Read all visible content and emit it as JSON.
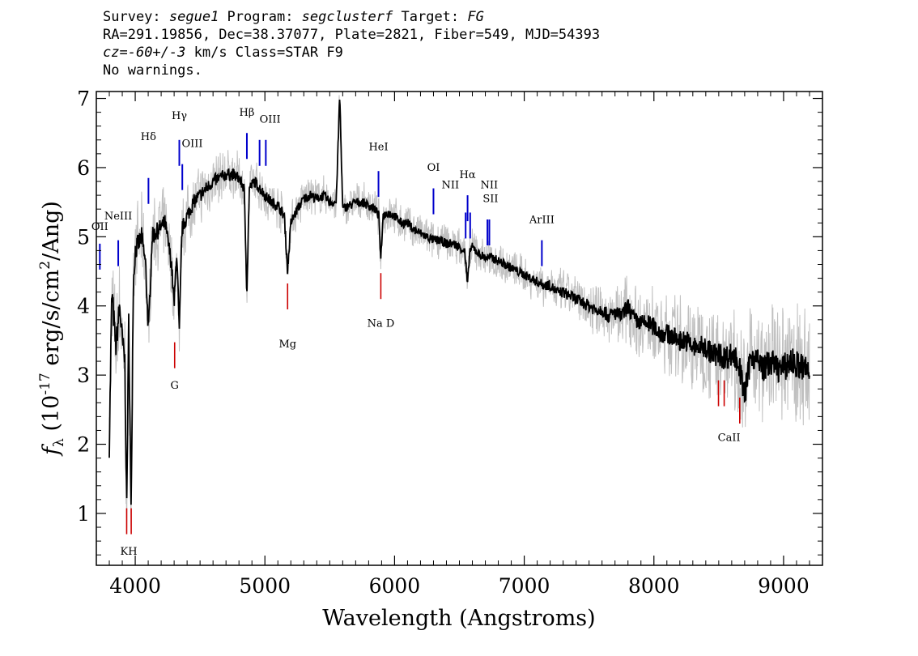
{
  "header": {
    "survey_label": "Survey: ",
    "survey": "segue1",
    "program_label": " Program: ",
    "program": "segclusterf",
    "target_label": " Target: ",
    "target": "FG",
    "line2": "RA=291.19856, Dec=38.37077, Plate=2821, Fiber=549, MJD=54393",
    "cz_label": "cz",
    "cz_value": "=-60+/-3",
    "cz_rest": " km/s Class=STAR F9",
    "line4": "No warnings."
  },
  "chart_data": {
    "type": "line",
    "xlabel": "Wavelength (Angstroms)",
    "ylabel_prefix": "f",
    "ylabel_sub": "λ",
    "ylabel_main": " (10",
    "ylabel_exp": "-17",
    "ylabel_mid": " erg/s/cm",
    "ylabel_exp2": "2",
    "ylabel_end": "/Ang)",
    "xlim": [
      3700,
      9300
    ],
    "ylim": [
      0.25,
      7.1
    ],
    "x_ticks": [
      4000,
      5000,
      6000,
      7000,
      8000,
      9000
    ],
    "y_ticks": [
      1,
      2,
      3,
      4,
      5,
      6,
      7
    ],
    "series": [
      {
        "role": "spectrum",
        "color": "#000000",
        "x": [
          3800,
          3820,
          3850,
          3880,
          3900,
          3920,
          3934,
          3950,
          3968,
          3985,
          4000,
          4050,
          4080,
          4102,
          4130,
          4180,
          4230,
          4280,
          4300,
          4320,
          4340,
          4360,
          4400,
          4450,
          4500,
          4550,
          4600,
          4650,
          4700,
          4750,
          4800,
          4840,
          4861,
          4880,
          4920,
          4960,
          5000,
          5050,
          5100,
          5150,
          5175,
          5200,
          5250,
          5300,
          5350,
          5400,
          5450,
          5500,
          5550,
          5577,
          5600,
          5650,
          5700,
          5750,
          5800,
          5850,
          5880,
          5893,
          5910,
          5950,
          6000,
          6050,
          6100,
          6150,
          6200,
          6250,
          6300,
          6350,
          6400,
          6450,
          6500,
          6540,
          6563,
          6580,
          6600,
          6650,
          6700,
          6750,
          6800,
          6850,
          6900,
          6950,
          7000,
          7050,
          7100,
          7150,
          7200,
          7250,
          7300,
          7350,
          7400,
          7450,
          7500,
          7550,
          7600,
          7650,
          7700,
          7750,
          7800,
          7850,
          7900,
          7950,
          8000,
          8050,
          8100,
          8150,
          8200,
          8250,
          8300,
          8350,
          8400,
          8450,
          8500,
          8550,
          8600,
          8650,
          8700,
          8750,
          8800,
          8850,
          8900,
          8950,
          9000,
          9050,
          9100,
          9150,
          9200
        ],
        "y": [
          2.0,
          4.2,
          3.4,
          4.0,
          3.5,
          3.2,
          1.0,
          3.8,
          1.0,
          4.3,
          4.8,
          5.0,
          4.6,
          3.6,
          5.0,
          5.1,
          5.2,
          4.6,
          4.0,
          4.8,
          3.6,
          5.1,
          5.3,
          5.5,
          5.6,
          5.7,
          5.8,
          5.85,
          5.9,
          5.9,
          5.85,
          5.7,
          4.2,
          5.7,
          5.8,
          5.7,
          5.6,
          5.5,
          5.45,
          5.3,
          4.5,
          5.2,
          5.4,
          5.55,
          5.6,
          5.55,
          5.6,
          5.5,
          5.5,
          7.05,
          5.4,
          5.45,
          5.5,
          5.5,
          5.45,
          5.4,
          5.3,
          4.6,
          5.3,
          5.35,
          5.3,
          5.2,
          5.2,
          5.1,
          5.05,
          5.0,
          4.95,
          4.95,
          4.9,
          4.9,
          4.85,
          4.8,
          4.3,
          4.8,
          4.85,
          4.75,
          4.7,
          4.7,
          4.65,
          4.6,
          4.55,
          4.5,
          4.45,
          4.4,
          4.35,
          4.3,
          4.3,
          4.2,
          4.2,
          4.15,
          4.1,
          4.05,
          4.0,
          3.95,
          3.95,
          3.85,
          3.9,
          3.85,
          4.0,
          3.8,
          3.75,
          3.75,
          3.7,
          3.6,
          3.6,
          3.55,
          3.5,
          3.5,
          3.4,
          3.4,
          3.4,
          3.3,
          3.3,
          3.25,
          3.3,
          3.2,
          2.7,
          3.3,
          3.2,
          3.1,
          3.2,
          3.1,
          3.1,
          3.2,
          3.15,
          3.1,
          3.05
        ]
      },
      {
        "role": "error-envelope",
        "color": "#c0c0c0",
        "x": [
          3750,
          3900,
          4100,
          4400,
          4700,
          5000,
          5500,
          6000,
          6500,
          7000,
          7500,
          8000,
          8500,
          9000,
          9200
        ],
        "y": [
          0.45,
          0.4,
          0.3,
          0.25,
          0.2,
          0.18,
          0.15,
          0.15,
          0.15,
          0.15,
          0.2,
          0.3,
          0.4,
          0.45,
          0.5
        ]
      }
    ],
    "emission_lines": [
      {
        "label": "OII",
        "x": 3727,
        "y": 4.9,
        "color": "#0000cc"
      },
      {
        "label": "NeIII",
        "x": 3869,
        "y": 4.95,
        "color": "#0000cc"
      },
      {
        "label": "Hδ",
        "x": 4102,
        "y": 5.85,
        "color": "#0000cc"
      },
      {
        "label": "Hγ",
        "x": 4340,
        "y": 6.4,
        "color": "#0000cc"
      },
      {
        "label": "OIII",
        "x": 4363,
        "y": 6.05,
        "color": "#0000cc"
      },
      {
        "label": "Hβ",
        "x": 4861,
        "y": 6.5,
        "color": "#0000cc"
      },
      {
        "label": "OIII",
        "x": 4959,
        "y": 6.4,
        "color": "#0000cc"
      },
      {
        "label": "OIII",
        "x": 5007,
        "y": 6.4,
        "color": "#0000cc"
      },
      {
        "label": "HeI",
        "x": 5876,
        "y": 5.95,
        "color": "#0000cc"
      },
      {
        "label": "OI",
        "x": 6300,
        "y": 5.7,
        "color": "#0000cc"
      },
      {
        "label": "NII",
        "x": 6548,
        "y": 5.35,
        "color": "#0000cc"
      },
      {
        "label": "Hα",
        "x": 6563,
        "y": 5.6,
        "color": "#0000cc"
      },
      {
        "label": "NII",
        "x": 6583,
        "y": 5.35,
        "color": "#0000cc"
      },
      {
        "label": "SII",
        "x": 6716,
        "y": 5.25,
        "color": "#0000cc"
      },
      {
        "label": "SII",
        "x": 6731,
        "y": 5.25,
        "color": "#0000cc"
      },
      {
        "label": "ArIII",
        "x": 7136,
        "y": 4.95,
        "color": "#0000cc"
      }
    ],
    "absorption_lines": [
      {
        "label": "K",
        "x": 3934,
        "y": 0.7,
        "color": "#cc0000"
      },
      {
        "label": "H",
        "x": 3969,
        "y": 0.7,
        "color": "#cc0000"
      },
      {
        "label": "G",
        "x": 4304,
        "y": 3.1,
        "color": "#cc0000"
      },
      {
        "label": "Mg",
        "x": 5175,
        "y": 3.95,
        "color": "#cc0000"
      },
      {
        "label": "Na",
        "x": 5894,
        "y": 4.1,
        "color": "#cc0000"
      },
      {
        "label": "CaII",
        "x": 8498,
        "y": 2.55,
        "color": "#cc0000"
      },
      {
        "label": "CaII",
        "x": 8542,
        "y": 2.55,
        "color": "#cc0000"
      },
      {
        "label": "CaII",
        "x": 8662,
        "y": 2.3,
        "color": "#cc0000"
      }
    ],
    "line_annotations": [
      {
        "text": "OII",
        "x": 3727,
        "y": 5.1,
        "color": "#000000"
      },
      {
        "text": "NeIII",
        "x": 3869,
        "y": 5.25,
        "color": "#000000"
      },
      {
        "text": "Hδ",
        "x": 4102,
        "y": 6.4,
        "color": "#000000"
      },
      {
        "text": "Hγ",
        "x": 4340,
        "y": 6.7,
        "color": "#000000"
      },
      {
        "text": "OIII",
        "x": 4440,
        "y": 6.3,
        "color": "#000000"
      },
      {
        "text": "Hβ",
        "x": 4861,
        "y": 6.75,
        "color": "#000000"
      },
      {
        "text": "OIII",
        "x": 5040,
        "y": 6.65,
        "color": "#000000"
      },
      {
        "text": "HeI",
        "x": 5876,
        "y": 6.25,
        "color": "#000000"
      },
      {
        "text": "OI",
        "x": 6300,
        "y": 5.95,
        "color": "#000000"
      },
      {
        "text": "NII",
        "x": 6430,
        "y": 5.7,
        "color": "#000000"
      },
      {
        "text": "Hα",
        "x": 6563,
        "y": 5.85,
        "color": "#000000"
      },
      {
        "text": "NII",
        "x": 6730,
        "y": 5.7,
        "color": "#000000"
      },
      {
        "text": "SII",
        "x": 6740,
        "y": 5.5,
        "color": "#000000"
      },
      {
        "text": "ArIII",
        "x": 7136,
        "y": 5.2,
        "color": "#000000"
      },
      {
        "text": "KH",
        "x": 3950,
        "y": 0.4,
        "color": "#000000"
      },
      {
        "text": "G",
        "x": 4304,
        "y": 2.8,
        "color": "#000000"
      },
      {
        "text": "Mg",
        "x": 5175,
        "y": 3.4,
        "color": "#000000"
      },
      {
        "text": "Na  D",
        "x": 5894,
        "y": 3.7,
        "color": "#000000"
      },
      {
        "text": "CaII",
        "x": 8580,
        "y": 2.05,
        "color": "#000000"
      }
    ]
  }
}
